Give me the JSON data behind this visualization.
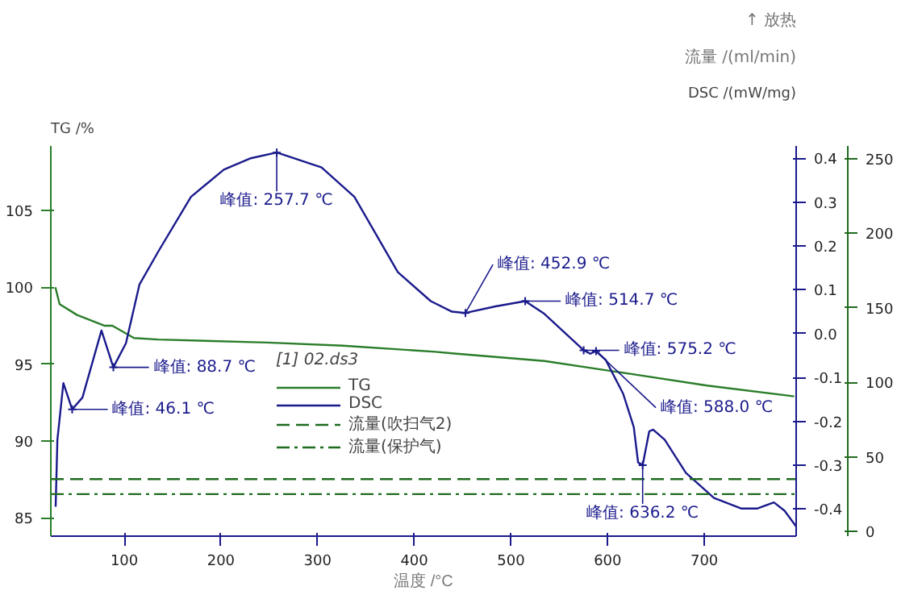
{
  "chart_data": {
    "type": "line",
    "ylabel": "TG /%",
    "y2label": "DSC /(mW/mg)",
    "y3label": "流量 /(ml/min)",
    "xlabel": "温度 /°C",
    "legend_title": "[1] 02.ds3",
    "xlim": [
      24,
      795
    ],
    "xticks": [
      100,
      200,
      300,
      400,
      500,
      600,
      700
    ],
    "ylim": [
      83.8,
      109.2
    ],
    "yticks": [
      85,
      90,
      95,
      100,
      105
    ],
    "y2lim": [
      -0.462,
      0.428
    ],
    "y2ticks": [
      -0.4,
      -0.3,
      -0.2,
      -0.1,
      {
        "value": 0,
        "label": "0.0"
      },
      0.1,
      0.2,
      0.3,
      0.4
    ],
    "y3lim": [
      -3.2,
      258.4
    ],
    "y3ticks": [
      0,
      50,
      100,
      150,
      200,
      250
    ],
    "grid": false,
    "legend": "bottom",
    "marker": "none",
    "series": [
      {
        "name": "TG",
        "color": "#2a7d2a",
        "line_style": "solid",
        "x": [
          28.7,
          33.1,
          51.1,
          79.3,
          87.7,
          110,
          135,
          248,
          326,
          422,
          439,
          534.6,
          630,
          703,
          793
        ],
        "values": [
          100.0,
          98.9,
          98.2,
          97.5,
          97.5,
          96.7,
          96.6,
          96.4,
          96.2,
          95.8,
          95.7,
          95.2,
          94.3,
          93.6,
          92.9
        ]
      },
      {
        "name": "DSC",
        "color": "#1a1a8c",
        "axis": "y2",
        "line_style": "solid",
        "x": [
          29,
          30.8,
          37,
          46.1,
          56.7,
          76.4,
          88.7,
          101.7,
          115.7,
          135.4,
          169,
          203,
          231,
          257.7,
          304,
          338,
          383,
          417,
          439,
          452.9,
          484,
          514.7,
          534.6,
          575.2,
          582,
          588.0,
          598,
          616,
          627,
          631.5,
          636.2,
          643,
          647,
          659,
          681,
          710,
          738,
          755,
          772,
          783,
          795
        ],
        "values": [
          -0.395,
          -0.242,
          -0.113,
          -0.173,
          -0.146,
          0.007,
          -0.077,
          -0.022,
          0.112,
          0.188,
          0.312,
          0.374,
          0.4,
          0.413,
          0.379,
          0.312,
          0.14,
          0.074,
          0.05,
          0.047,
          0.062,
          0.074,
          0.045,
          -0.038,
          -0.046,
          -0.04,
          -0.06,
          -0.137,
          -0.213,
          -0.294,
          -0.3,
          -0.223,
          -0.219,
          -0.242,
          -0.318,
          -0.375,
          -0.399,
          -0.399,
          -0.385,
          -0.404,
          -0.44
        ]
      },
      {
        "name": "流量(吹扫气2)",
        "color": "#1f6b1f",
        "axis": "y3",
        "line_style": "dashed",
        "x": [
          24,
          795
        ],
        "values": [
          35,
          35
        ]
      },
      {
        "name": "流量(保护气)",
        "color": "#1f6b1f",
        "axis": "y3",
        "line_style": "dashdot",
        "x": [
          24,
          795
        ],
        "values": [
          25,
          25
        ]
      }
    ],
    "annotations": [
      "↑ 放热",
      {
        "text": "峰值: 46.1 ℃",
        "x": 46.1,
        "y": 92.05
      },
      {
        "text": "峰值: 88.7 ℃",
        "x": 88.7,
        "y": 94.79
      },
      {
        "text": "峰值: 257.7 ℃",
        "x": 257.7,
        "y": 108.77
      },
      {
        "text": "峰值: 452.9 ℃",
        "x": 452.9,
        "y": 98.33
      },
      {
        "text": "峰值: 514.7 ℃",
        "x": 514.7,
        "y": 99.1
      },
      {
        "text": "峰值: 575.2 ℃",
        "x": 575.2,
        "y": 95.9
      },
      {
        "text": "峰值: 588.0 ℃",
        "x": 588.0,
        "y": 95.84
      },
      {
        "text": "峰值: 636.2 ℃",
        "x": 636.2,
        "y": 88.42
      }
    ]
  }
}
